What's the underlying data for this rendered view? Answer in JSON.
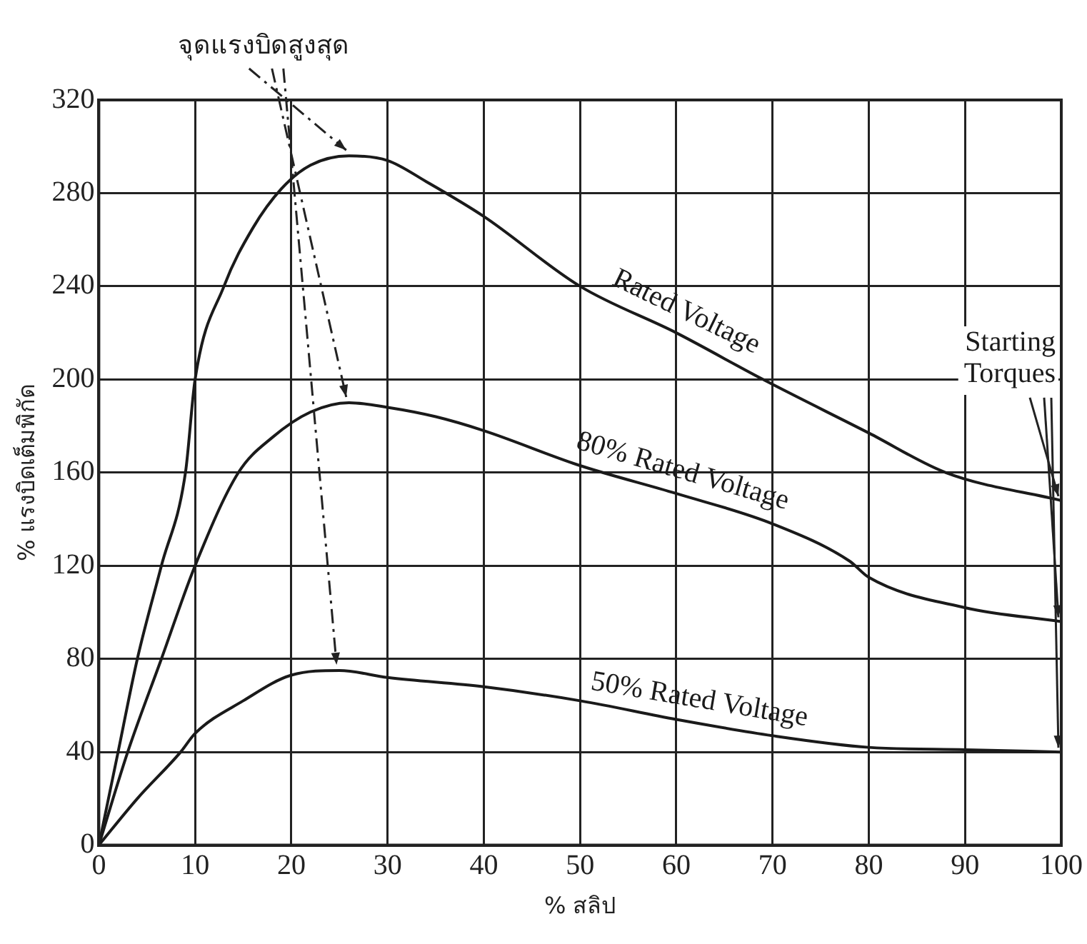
{
  "chart_data": {
    "type": "line",
    "xlabel": "% สลิป",
    "ylabel": "% แรงบิดเต็มพิกัด",
    "annotations": [
      {
        "text": "จุดแรงบิดสูงสุด",
        "x": 26,
        "y": 296
      },
      {
        "text": "Starting Torques",
        "x": 100,
        "y": 148
      }
    ],
    "xlim": [
      0,
      100
    ],
    "xticks": [
      0,
      10,
      20,
      30,
      40,
      50,
      60,
      70,
      80,
      90,
      100
    ],
    "ylim": [
      0,
      320
    ],
    "yticks": [
      0,
      40,
      80,
      120,
      160,
      200,
      240,
      280,
      320
    ],
    "grid": true,
    "legend": false,
    "marker": "none",
    "line_style": "solid",
    "series": [
      {
        "name": "Rated Voltage",
        "color": "#1a1a1a",
        "x": [
          0,
          2,
          4,
          6.5,
          9,
          10,
          13,
          16,
          19,
          22,
          26,
          30,
          34,
          40,
          50,
          60,
          69,
          80,
          88,
          100
        ],
        "values": [
          0,
          40,
          80,
          120,
          160,
          200,
          240,
          265,
          282,
          292,
          296,
          294,
          285,
          270,
          240,
          220,
          200,
          177,
          160,
          148
        ]
      },
      {
        "name": "80% Rated Voltage",
        "color": "#1a1a1a",
        "x": [
          0,
          3,
          6.5,
          10,
          14.5,
          18,
          22,
          26,
          30,
          35,
          40,
          50,
          60,
          70,
          78,
          80,
          90,
          100
        ],
        "values": [
          0,
          40,
          80,
          120,
          160,
          175,
          186,
          190,
          188,
          184,
          178,
          163,
          151,
          138,
          122,
          115,
          102,
          96
        ]
      },
      {
        "name": "50% Rated Voltage",
        "color": "#1a1a1a",
        "x": [
          0,
          4,
          8.5,
          10,
          15,
          20,
          25,
          30,
          40,
          50,
          60,
          70,
          80,
          90,
          100
        ],
        "values": [
          0,
          20,
          40,
          48,
          62,
          73,
          75,
          72,
          68,
          62,
          54,
          47,
          42,
          41,
          40
        ]
      }
    ]
  }
}
